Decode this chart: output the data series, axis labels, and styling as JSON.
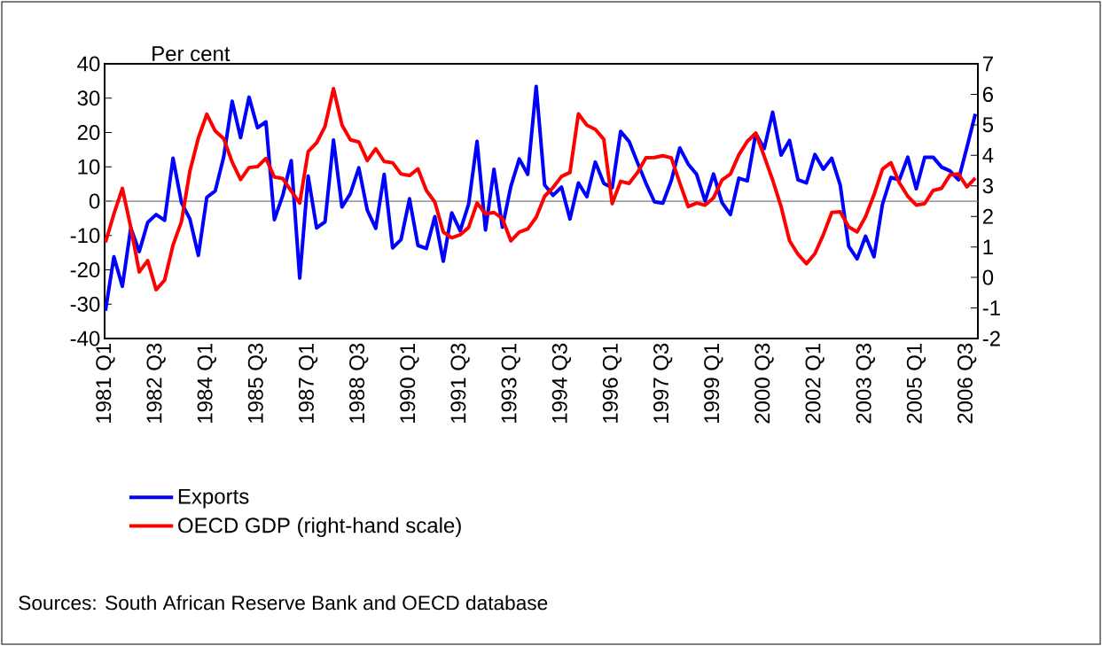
{
  "chart_data": {
    "type": "line",
    "ylabel": "Per cent",
    "categories": [
      "1981 Q1",
      null,
      null,
      null,
      null,
      null,
      "1982 Q3",
      null,
      null,
      null,
      null,
      null,
      "1984 Q1",
      null,
      null,
      null,
      null,
      null,
      "1985 Q3",
      null,
      null,
      null,
      null,
      null,
      "1987 Q1",
      null,
      null,
      null,
      null,
      null,
      "1988 Q3",
      null,
      null,
      null,
      null,
      null,
      "1990 Q1",
      null,
      null,
      null,
      null,
      null,
      "1991 Q3",
      null,
      null,
      null,
      null,
      null,
      "1993 Q1",
      null,
      null,
      null,
      null,
      null,
      "1994 Q3",
      null,
      null,
      null,
      null,
      null,
      "1996 Q1",
      null,
      null,
      null,
      null,
      null,
      "1997 Q3",
      null,
      null,
      null,
      null,
      null,
      "1999 Q1",
      null,
      null,
      null,
      null,
      null,
      "2000 Q3",
      null,
      null,
      null,
      null,
      null,
      "2002 Q1",
      null,
      null,
      null,
      null,
      null,
      "2003 Q3",
      null,
      null,
      null,
      null,
      null,
      "2005 Q1",
      null,
      null,
      null,
      null,
      null,
      "2006 Q3",
      null
    ],
    "series": [
      {
        "name": "Exports",
        "color": "#0000ff",
        "values": [
          -31.9,
          -16.2,
          -24.8,
          -7.8,
          -14.7,
          -6.2,
          -3.9,
          -5.6,
          12.5,
          -0.4,
          -5.2,
          -15.8,
          1.1,
          3.0,
          12.9,
          29.1,
          18.5,
          30.3,
          21.4,
          23.1,
          -5.4,
          1.7,
          11.8,
          -22.4,
          7.3,
          -7.8,
          -6.0,
          17.8,
          -1.7,
          2.2,
          9.7,
          -2.6,
          -7.9,
          7.8,
          -13.6,
          -11.2,
          0.7,
          -12.9,
          -13.8,
          -4.5,
          -17.5,
          -3.4,
          -8.6,
          -0.9,
          17.4,
          -8.4,
          9.3,
          -7.6,
          4.3,
          12.3,
          7.8,
          33.4,
          4.7,
          1.7,
          4.1,
          -5.2,
          5.3,
          1.3,
          11.4,
          5.2,
          3.9,
          20.3,
          17.4,
          11.2,
          5.2,
          -0.2,
          -0.6,
          6.0,
          15.5,
          10.8,
          7.8,
          0.0,
          7.9,
          -0.4,
          -3.9,
          6.7,
          5.9,
          19.7,
          15.3,
          25.9,
          13.4,
          17.7,
          6.2,
          5.3,
          13.6,
          9.3,
          12.5,
          4.7,
          -13.1,
          -16.8,
          -10.2,
          -16.2,
          -0.9,
          6.9,
          6.2,
          12.8,
          3.6,
          12.8,
          12.8,
          9.9,
          8.8,
          6.2,
          15.7,
          25.4
        ]
      },
      {
        "name": "OECD GDP (right-hand scale)",
        "color": "#ff0000",
        "axis": "y2",
        "values": [
          1.15,
          2.08,
          2.92,
          1.64,
          0.18,
          0.55,
          -0.4,
          -0.09,
          1.06,
          1.83,
          3.49,
          4.57,
          5.35,
          4.8,
          4.55,
          3.78,
          3.21,
          3.6,
          3.63,
          3.9,
          3.29,
          3.24,
          2.83,
          2.44,
          4.12,
          4.41,
          4.95,
          6.19,
          5.0,
          4.51,
          4.44,
          3.83,
          4.22,
          3.8,
          3.76,
          3.39,
          3.34,
          3.56,
          2.85,
          2.47,
          1.49,
          1.3,
          1.4,
          1.64,
          2.44,
          2.08,
          2.13,
          1.93,
          1.2,
          1.49,
          1.59,
          1.97,
          2.66,
          2.95,
          3.31,
          3.44,
          5.36,
          4.99,
          4.85,
          4.53,
          2.42,
          3.15,
          3.08,
          3.44,
          3.92,
          3.93,
          3.99,
          3.92,
          3.1,
          2.32,
          2.44,
          2.37,
          2.61,
          3.19,
          3.39,
          4.02,
          4.46,
          4.73,
          3.97,
          3.19,
          2.32,
          1.2,
          0.76,
          0.45,
          0.78,
          1.4,
          2.13,
          2.15,
          1.66,
          1.49,
          1.99,
          2.71,
          3.55,
          3.76,
          3.1,
          2.66,
          2.37,
          2.42,
          2.85,
          2.92,
          3.36,
          3.39,
          2.97,
          3.26
        ]
      }
    ],
    "ylim": [
      -40,
      40
    ],
    "yticks": [
      -40,
      -30,
      -20,
      -10,
      0,
      10,
      20,
      30,
      40
    ],
    "y2lim": [
      -2,
      7
    ],
    "y2ticks": [
      -2,
      -1,
      0,
      1,
      2,
      3,
      4,
      5,
      6,
      7
    ],
    "ref_lines": [
      {
        "axis": "y",
        "value": 0,
        "color": "#808080"
      }
    ],
    "legend": "bottom",
    "marker": "none",
    "line_style": "solid",
    "annotations": [
      "Sources: South African Reserve Bank and OECD database"
    ]
  }
}
